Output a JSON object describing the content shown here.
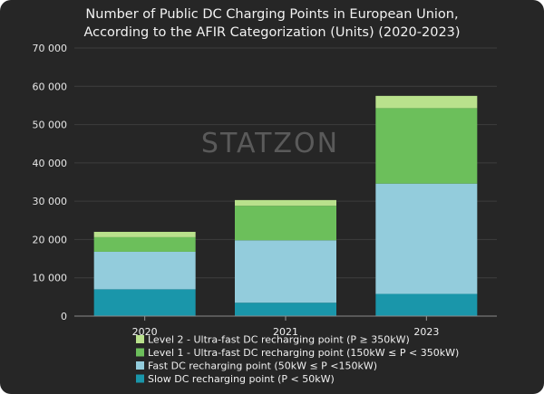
{
  "watermark": "STATZON",
  "chart_data": {
    "type": "bar",
    "stacked": true,
    "title": "Number of Public DC Charging Points in European Union, According to the AFIR Categorization (Units) (2020-2023)",
    "title_lines": [
      "Number of Public DC Charging Points in European Union,",
      "According to the AFIR Categorization (Units) (2020-2023)"
    ],
    "xlabel": "",
    "ylabel": "",
    "ylim": [
      0,
      70000
    ],
    "yticks": [
      0,
      10000,
      20000,
      30000,
      40000,
      50000,
      60000,
      70000
    ],
    "ytick_labels": [
      "0",
      "10 000",
      "20 000",
      "30 000",
      "40 000",
      "50 000",
      "60 000",
      "70 000"
    ],
    "grid": true,
    "legend_position": "bottom",
    "categories": [
      "2020",
      "2021",
      "2023"
    ],
    "series": [
      {
        "name": "Slow DC recharging point (P < 50kW)",
        "color": "#1a96aa",
        "values": [
          7000,
          3500,
          5800
        ]
      },
      {
        "name": "Fast DC recharging point (50kW ≤ P <150kW)",
        "color": "#93ccdc",
        "values": [
          9800,
          16300,
          28800
        ]
      },
      {
        "name": "Level 1 - Ultra-fast DC recharging point (150kW ≤ P < 350kW)",
        "color": "#6cbf5b",
        "values": [
          3800,
          9000,
          19700
        ]
      },
      {
        "name": "Level 2 - Ultra-fast DC recharging point (P ≥ 350kW)",
        "color": "#b9e18c",
        "values": [
          1400,
          1500,
          3200
        ]
      }
    ]
  }
}
